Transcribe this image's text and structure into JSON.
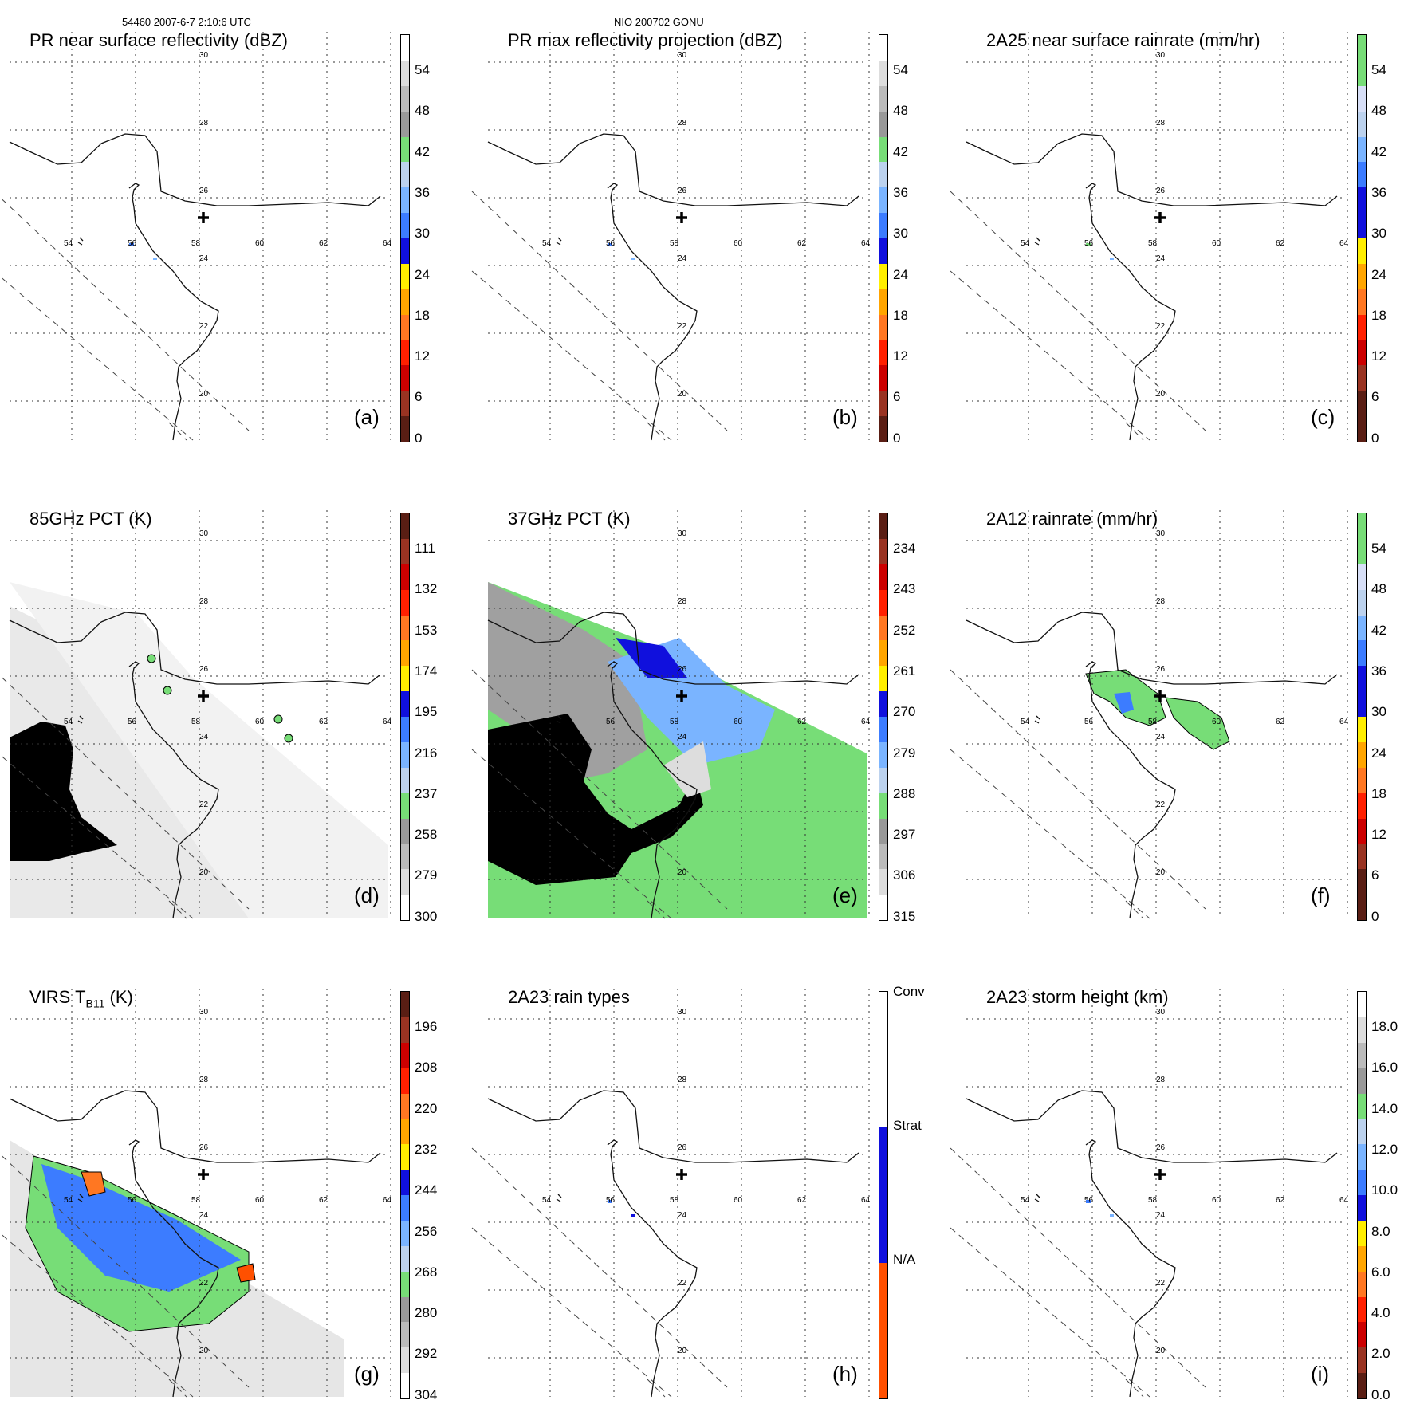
{
  "header": {
    "orbit_time": "54460 2007-6-7 2:10:6 UTC",
    "storm": "NIO 200702 GONU"
  },
  "colors": {
    "coast": "#111111",
    "grid": "#333333",
    "swath": "#444444",
    "cold_scale": [
      "#ffffff",
      "#dddddd",
      "#bbbbbb",
      "#999999",
      "#77dd77",
      "#bcd2ee",
      "#7ab4ff",
      "#3c7cff",
      "#1010dd",
      "#ffee00",
      "#ffa500",
      "#ff7722",
      "#ff2000",
      "#cc0000",
      "#993322",
      "#5a1e14"
    ],
    "warm_scale": [
      "#5a1e14",
      "#993322",
      "#cc0000",
      "#ff2000",
      "#ff7722",
      "#ffa500",
      "#ffee00",
      "#1010dd",
      "#3c7cff",
      "#7ab4ff",
      "#bcd2ee",
      "#77dd77",
      "#999999",
      "#bbbbbb",
      "#dddddd",
      "#ffffff"
    ],
    "rain_scale": [
      "#77dd77",
      "#77dd77",
      "#d7dff7",
      "#bcd2ee",
      "#7ab4ff",
      "#3c7cff",
      "#1010dd",
      "#1010dd",
      "#ffee00",
      "#ffa500",
      "#ff7722",
      "#ff2000",
      "#cc0000",
      "#993322",
      "#5a1e14",
      "#5a1e14"
    ],
    "type_scale": [
      "#ffffff",
      "#1010dd",
      "#ff5000"
    ]
  },
  "map_labels": {
    "longitudes": [
      "54",
      "56",
      "58",
      "60",
      "62",
      "64"
    ],
    "latitudes": [
      "30",
      "28",
      "26",
      "24",
      "22",
      "20"
    ]
  },
  "panels": [
    {
      "id": "a",
      "title": "PR near surface reflectivity (dBZ)",
      "letter": "(a)",
      "scale": "cold_scale",
      "ticks": [
        "54",
        "48",
        "42",
        "36",
        "30",
        "24",
        "18",
        "12",
        "6",
        "0"
      ]
    },
    {
      "id": "b",
      "title": "PR max reflectivity projection (dBZ)",
      "letter": "(b)",
      "scale": "cold_scale",
      "ticks": [
        "54",
        "48",
        "42",
        "36",
        "30",
        "24",
        "18",
        "12",
        "6",
        "0"
      ]
    },
    {
      "id": "c",
      "title": "2A25 near surface rainrate (mm/hr)",
      "letter": "(c)",
      "scale": "rain_scale",
      "ticks": [
        "54",
        "48",
        "42",
        "36",
        "30",
        "24",
        "18",
        "12",
        "6",
        "0"
      ]
    },
    {
      "id": "d",
      "title": "85GHz PCT (K)",
      "letter": "(d)",
      "scale": "warm_scale",
      "ticks": [
        "111",
        "132",
        "153",
        "174",
        "195",
        "216",
        "237",
        "258",
        "279",
        "300"
      ]
    },
    {
      "id": "e",
      "title": "37GHz PCT (K)",
      "letter": "(e)",
      "scale": "warm_scale",
      "ticks": [
        "234",
        "243",
        "252",
        "261",
        "270",
        "279",
        "288",
        "297",
        "306",
        "315"
      ]
    },
    {
      "id": "f",
      "title": "2A12 rainrate (mm/hr)",
      "letter": "(f)",
      "scale": "rain_scale",
      "ticks": [
        "54",
        "48",
        "42",
        "36",
        "30",
        "24",
        "18",
        "12",
        "6",
        "0"
      ]
    },
    {
      "id": "g",
      "title": "VIRS T",
      "title_sub": "B11",
      "title_suffix": " (K)",
      "letter": "(g)",
      "scale": "warm_scale",
      "ticks": [
        "196",
        "208",
        "220",
        "232",
        "244",
        "256",
        "268",
        "280",
        "292",
        "304"
      ]
    },
    {
      "id": "h",
      "title": "2A23 rain types",
      "letter": "(h)",
      "scale": "type_scale",
      "ticks": [
        "Conv",
        "Strat",
        "N/A"
      ]
    },
    {
      "id": "i",
      "title": "2A23 storm height (km)",
      "letter": "(i)",
      "scale": "cold_scale",
      "ticks": [
        "18.0",
        "16.0",
        "14.0",
        "12.0",
        "10.0",
        "8.0",
        "6.0",
        "4.0",
        "2.0",
        "0.0"
      ]
    }
  ]
}
